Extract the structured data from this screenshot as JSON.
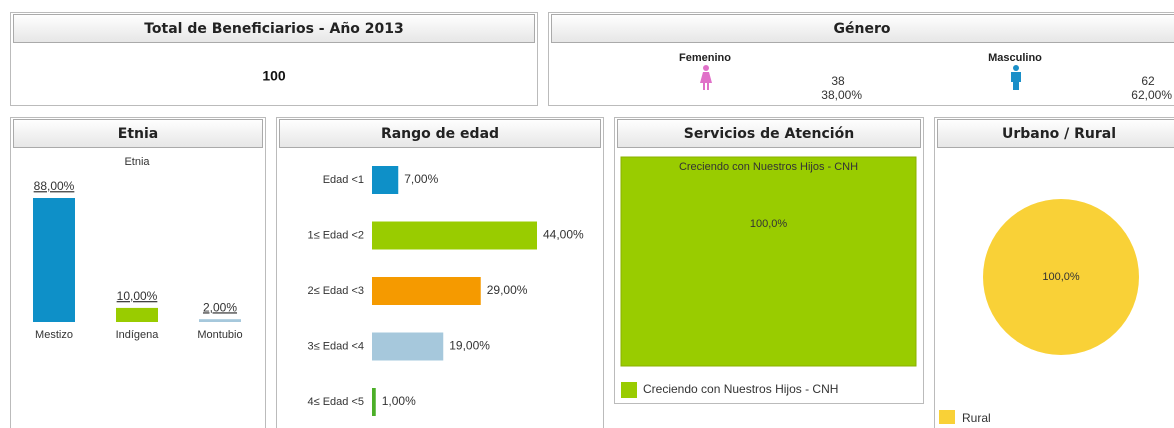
{
  "total": {
    "title": "Total de Beneficiarios - Año 2013",
    "value": 100
  },
  "genero": {
    "title": "Género",
    "items": [
      {
        "name": "Femenino",
        "count": 38,
        "share_label": "38,00%",
        "color": "#e070c8"
      },
      {
        "name": "Masculino",
        "count": 62,
        "share_label": "62,00%",
        "color": "#1a8fc8"
      }
    ]
  },
  "chart_data": [
    {
      "type": "bar",
      "panel_title": "Etnia",
      "title": "Etnia",
      "categories": [
        "Mestizo",
        "Indígena",
        "Montubio"
      ],
      "values": [
        88,
        10,
        2
      ],
      "value_labels": [
        "88,00%",
        "10,00%",
        "2,00%"
      ],
      "colors": [
        "#0e90c8",
        "#99cc00",
        "#a6c8dc"
      ]
    },
    {
      "type": "hbar",
      "panel_title": "Rango de edad",
      "categories": [
        "Edad <1",
        "1≤ Edad <2",
        "2≤ Edad <3",
        "3≤ Edad <4",
        "4≤ Edad <5"
      ],
      "values": [
        7,
        44,
        29,
        19,
        1
      ],
      "value_labels": [
        "7,00%",
        "44,00%",
        "29,00%",
        "19,00%",
        "1,00%"
      ],
      "colors": [
        "#0e90c8",
        "#99cc00",
        "#f59a00",
        "#a6c8dc",
        "#4caf28"
      ]
    },
    {
      "type": "treemap",
      "panel_title": "Servicios de Atención",
      "categories": [
        "Creciendo con Nuestros Hijos - CNH"
      ],
      "values": [
        100
      ],
      "value_labels": [
        "100,0%"
      ],
      "colors": [
        "#99cc00"
      ]
    },
    {
      "type": "pie",
      "panel_title": "Urbano / Rural",
      "categories": [
        "Rural"
      ],
      "values": [
        100
      ],
      "value_labels": [
        "100,0%"
      ],
      "colors": [
        "#f9d137"
      ]
    }
  ]
}
